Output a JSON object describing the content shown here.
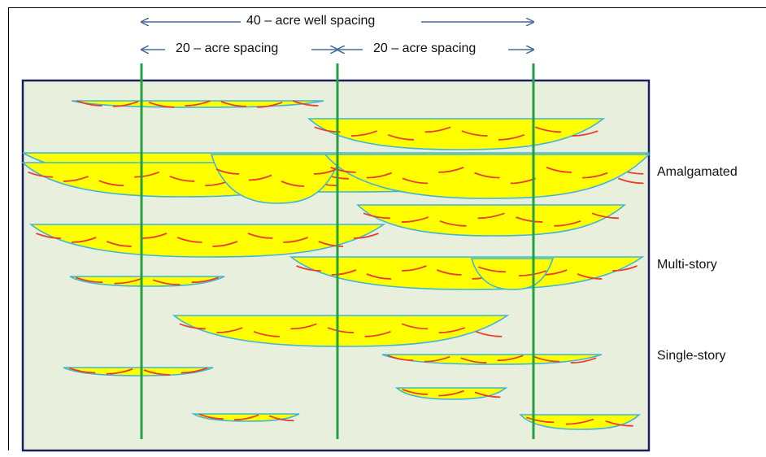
{
  "spacing": {
    "well_40": "40 – acre well spacing",
    "left_20": "20 – acre spacing",
    "right_20": "20 – acre spacing"
  },
  "legend": {
    "amalgamated": "Amalgamated",
    "multi_story": "Multi-story",
    "single_story": "Single-story"
  },
  "colors": {
    "background": "#e8efdc",
    "border": "#1b1f5c",
    "sand_fill": "#ffff00",
    "sand_outline": "#3fb6d6",
    "bedding": "#e8402a",
    "well": "#23a043",
    "arrow": "#4a6a9a"
  }
}
